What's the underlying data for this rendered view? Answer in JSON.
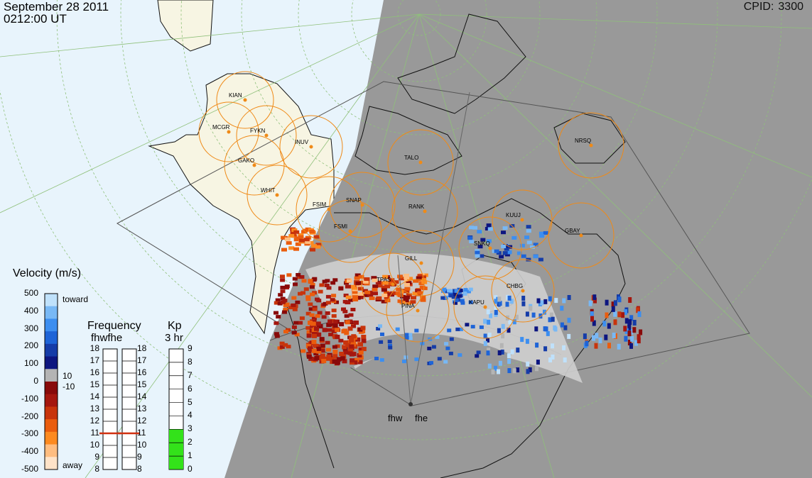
{
  "header": {
    "date": "September 28 2011",
    "time": "0212:00 UT",
    "cpid_label": "CPID:",
    "cpid_value": "3300"
  },
  "map": {
    "night_color": "#999999",
    "ocean_day_color": "#e8f4fc",
    "land_day_color": "#f7f5e3",
    "grid_color": "#8fc07a",
    "fov_ring_color": "#ef8a17",
    "stations": [
      {
        "code": "KIAN"
      },
      {
        "code": "MCGR"
      },
      {
        "code": "FYKN"
      },
      {
        "code": "INUV"
      },
      {
        "code": "GAKO"
      },
      {
        "code": "WHIT"
      },
      {
        "code": "TALO"
      },
      {
        "code": "NRSQ"
      },
      {
        "code": "FSIM"
      },
      {
        "code": "SNAP"
      },
      {
        "code": "FSMI"
      },
      {
        "code": "RANK"
      },
      {
        "code": "KUUJ"
      },
      {
        "code": "GBAY"
      },
      {
        "code": "SNKQ"
      },
      {
        "code": "GILL"
      },
      {
        "code": "TPAS"
      },
      {
        "code": "PINA"
      },
      {
        "code": "KAPU"
      },
      {
        "code": "CHBG"
      }
    ],
    "radars": [
      "fhw",
      "fhe"
    ]
  },
  "velocity_scale": {
    "title": "Velocity (m/s)",
    "ticks": [
      "500",
      "400",
      "300",
      "200",
      "100",
      "0",
      "-100",
      "-200",
      "-300",
      "-400",
      "-500"
    ],
    "toward_label": "toward",
    "away_label": "away",
    "pos_threshold": "10",
    "neg_threshold": "-10",
    "colors": [
      "#ffe3c8",
      "#ffbd80",
      "#fd8a20",
      "#ea5d0e",
      "#c8340c",
      "#a5170f",
      "#880a0a",
      "#b4b4b4",
      "#0d1680",
      "#153ca8",
      "#1e64d7",
      "#3c8ef0",
      "#78b8f5",
      "#bfe1fb"
    ]
  },
  "frequency_scale": {
    "title": "Frequency",
    "radar_labels": [
      "fhw",
      "fhe"
    ],
    "ticks": [
      "18",
      "17",
      "16",
      "15",
      "14",
      "13",
      "12",
      "11",
      "10",
      "9",
      "8"
    ],
    "fhw_value": 11,
    "fhe_value": 11,
    "marker_color": "#d03010"
  },
  "kp_scale": {
    "title": "Kp",
    "subtitle": "3 hr",
    "ticks": [
      "9",
      "8",
      "7",
      "6",
      "5",
      "4",
      "3",
      "2",
      "1",
      "0"
    ],
    "value": 3,
    "fill_color": "#33e21a"
  }
}
